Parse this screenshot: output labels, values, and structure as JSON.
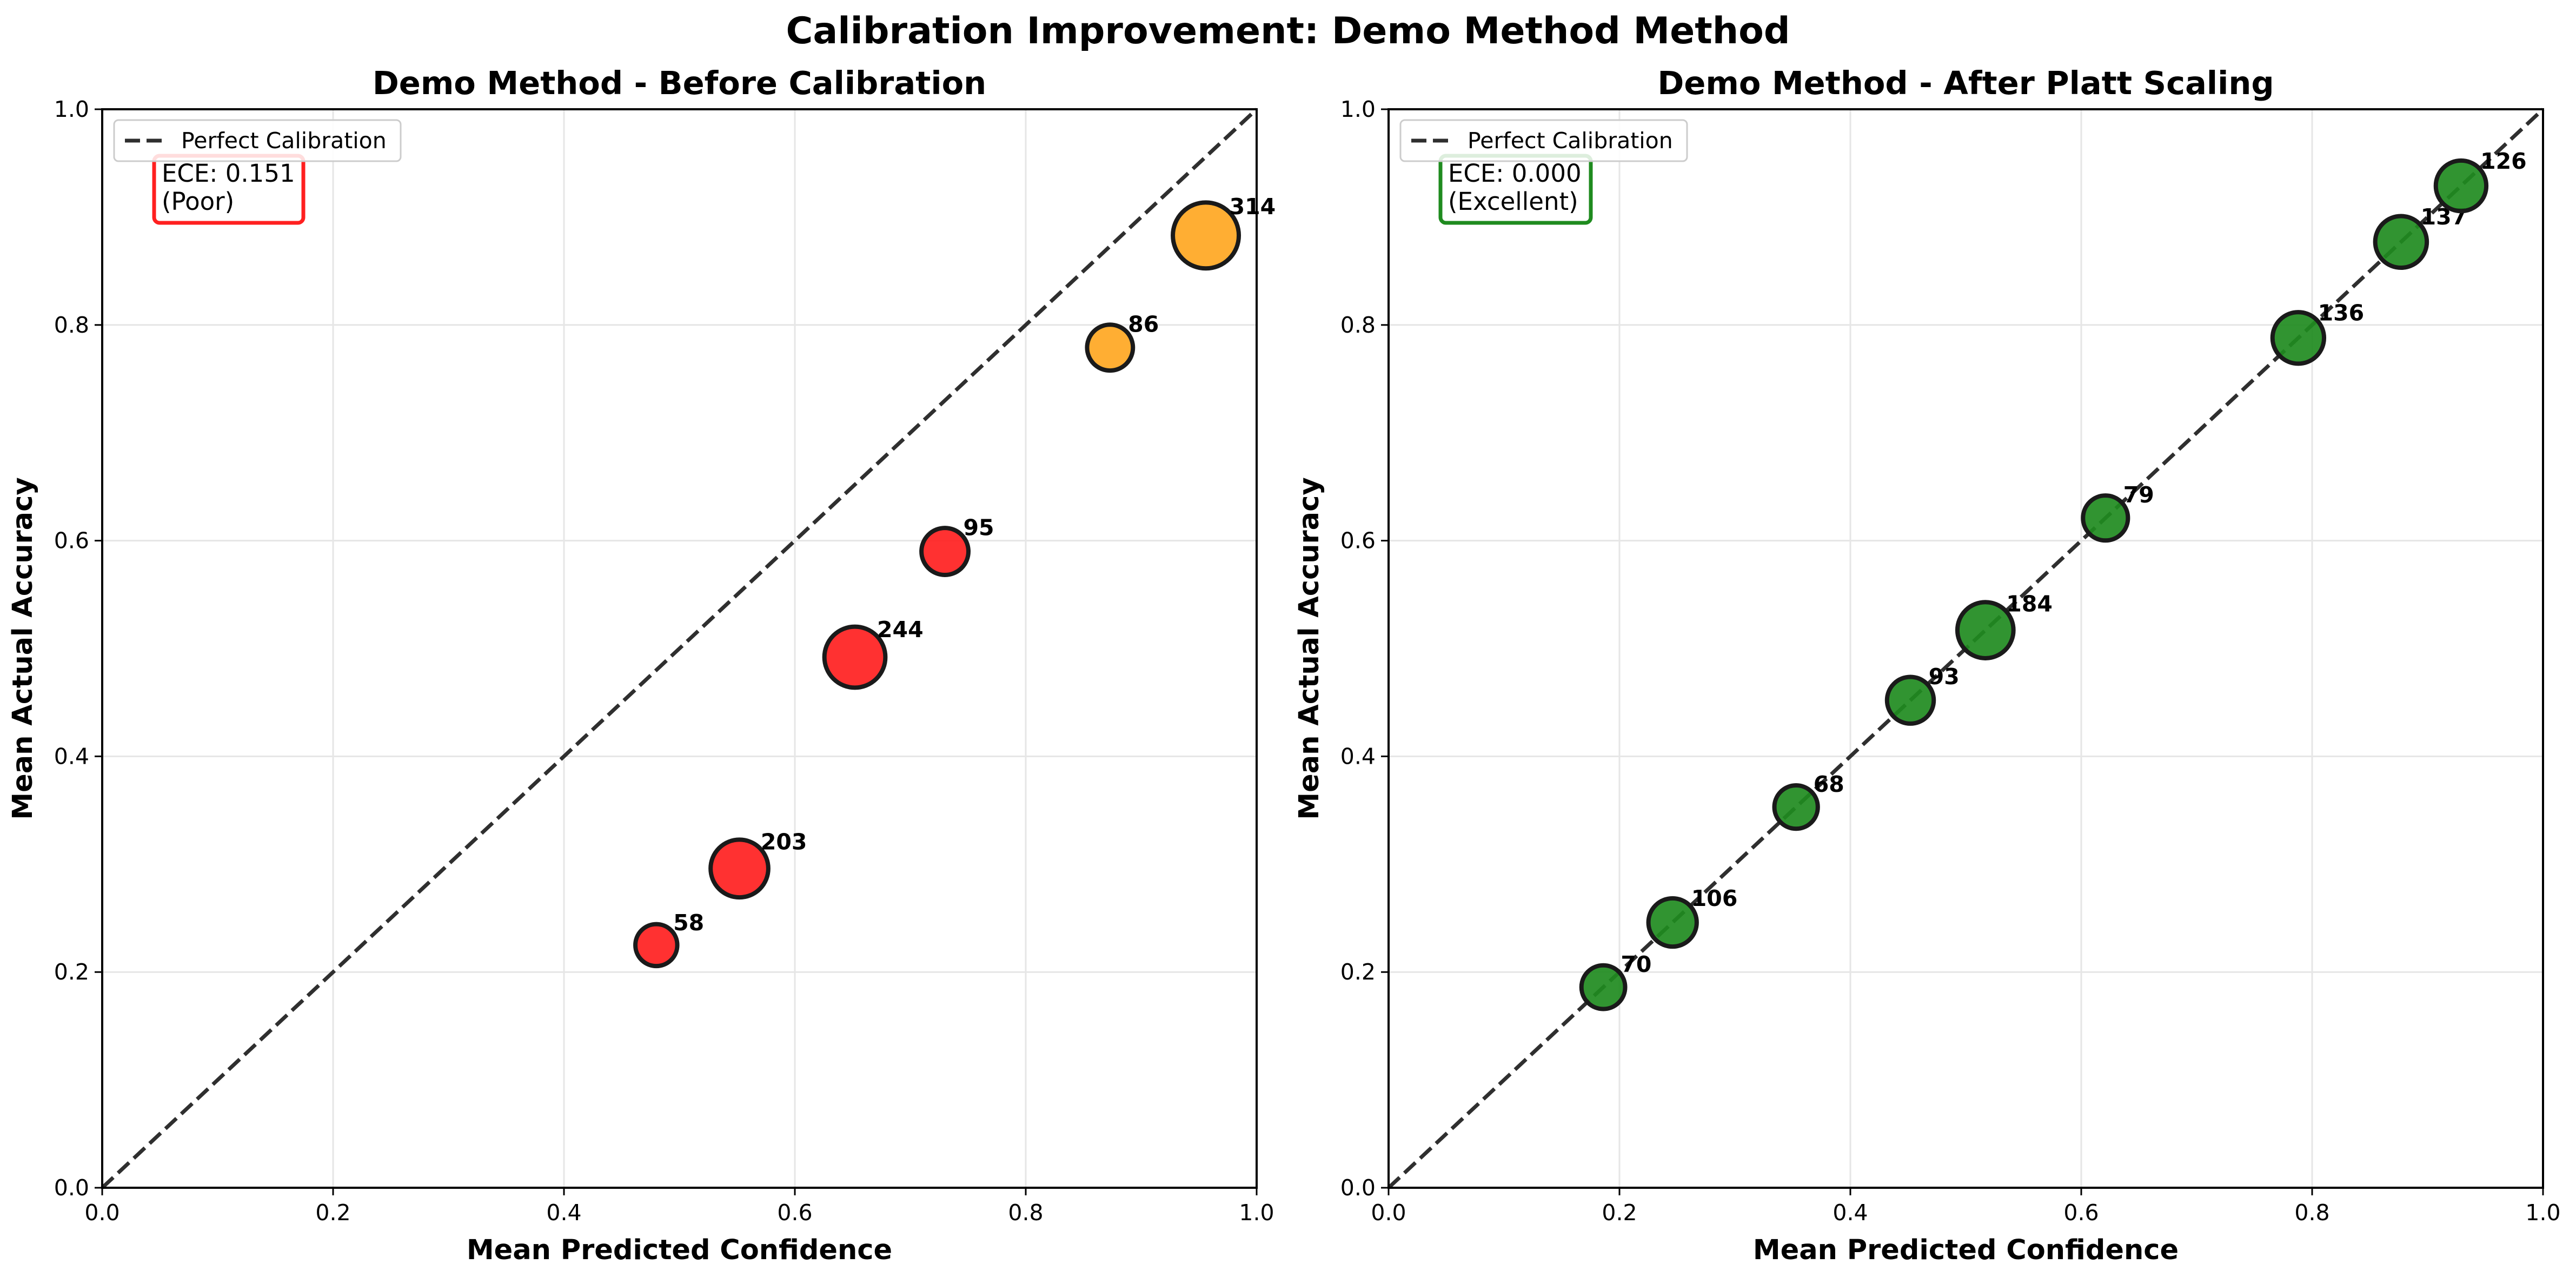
{
  "figure_title": "Calibration Improvement: Demo Method Method",
  "legend_label": "Perfect Calibration",
  "colors": {
    "poor": "#ff2020",
    "fair": "#ffa722",
    "good": "#1f8b1f",
    "diagonal": "#2f2f2f",
    "grid": "#e6e6e6"
  },
  "chart_data": [
    {
      "type": "scatter",
      "title": "Demo Method - Before Calibration",
      "xlabel": "Mean Predicted Confidence",
      "ylabel": "Mean Actual Accuracy",
      "xlim": [
        0.0,
        1.0
      ],
      "ylim": [
        0.0,
        1.0
      ],
      "xticks": [
        "0.0",
        "0.2",
        "0.4",
        "0.6",
        "0.8",
        "1.0"
      ],
      "yticks": [
        "0.0",
        "0.2",
        "0.4",
        "0.6",
        "0.8",
        "1.0"
      ],
      "grid": true,
      "legend": "upper-left",
      "ece_text": "ECE: 0.151\n(Poor)",
      "ece_border": "#ff2020",
      "points": [
        {
          "x": 0.48,
          "y": 0.225,
          "count": 58,
          "label": "58",
          "color": "#ff2020"
        },
        {
          "x": 0.552,
          "y": 0.296,
          "count": 203,
          "label": "203",
          "color": "#ff2020"
        },
        {
          "x": 0.652,
          "y": 0.492,
          "count": 244,
          "label": "244",
          "color": "#ff2020"
        },
        {
          "x": 0.73,
          "y": 0.59,
          "count": 95,
          "label": "95",
          "color": "#ff2020"
        },
        {
          "x": 0.873,
          "y": 0.779,
          "count": 86,
          "label": "86",
          "color": "#ffa722"
        },
        {
          "x": 0.956,
          "y": 0.883,
          "count": 314,
          "label": "314",
          "color": "#ffa722"
        }
      ]
    },
    {
      "type": "scatter",
      "title": "Demo Method - After Platt Scaling",
      "xlabel": "Mean Predicted Confidence",
      "ylabel": "Mean Actual Accuracy",
      "xlim": [
        0.0,
        1.0
      ],
      "ylim": [
        0.0,
        1.0
      ],
      "xticks": [
        "0.0",
        "0.2",
        "0.4",
        "0.6",
        "0.8",
        "1.0"
      ],
      "yticks": [
        "0.0",
        "0.2",
        "0.4",
        "0.6",
        "0.8",
        "1.0"
      ],
      "grid": true,
      "legend": "upper-left",
      "ece_text": "ECE: 0.000\n(Excellent)",
      "ece_border": "#1f8b1f",
      "points": [
        {
          "x": 0.186,
          "y": 0.186,
          "count": 70,
          "label": "70",
          "color": "#1f8b1f"
        },
        {
          "x": 0.246,
          "y": 0.246,
          "count": 106,
          "label": "106",
          "color": "#1f8b1f"
        },
        {
          "x": 0.353,
          "y": 0.353,
          "count": 68,
          "label": "68",
          "color": "#1f8b1f"
        },
        {
          "x": 0.452,
          "y": 0.452,
          "count": 93,
          "label": "93",
          "color": "#1f8b1f"
        },
        {
          "x": 0.517,
          "y": 0.517,
          "count": 184,
          "label": "184",
          "color": "#1f8b1f"
        },
        {
          "x": 0.621,
          "y": 0.621,
          "count": 79,
          "label": "79",
          "color": "#1f8b1f"
        },
        {
          "x": 0.788,
          "y": 0.788,
          "count": 136,
          "label": "136",
          "color": "#1f8b1f"
        },
        {
          "x": 0.877,
          "y": 0.877,
          "count": 137,
          "label": "137",
          "color": "#1f8b1f"
        },
        {
          "x": 0.929,
          "y": 0.929,
          "count": 126,
          "label": "126",
          "color": "#1f8b1f"
        }
      ]
    }
  ]
}
